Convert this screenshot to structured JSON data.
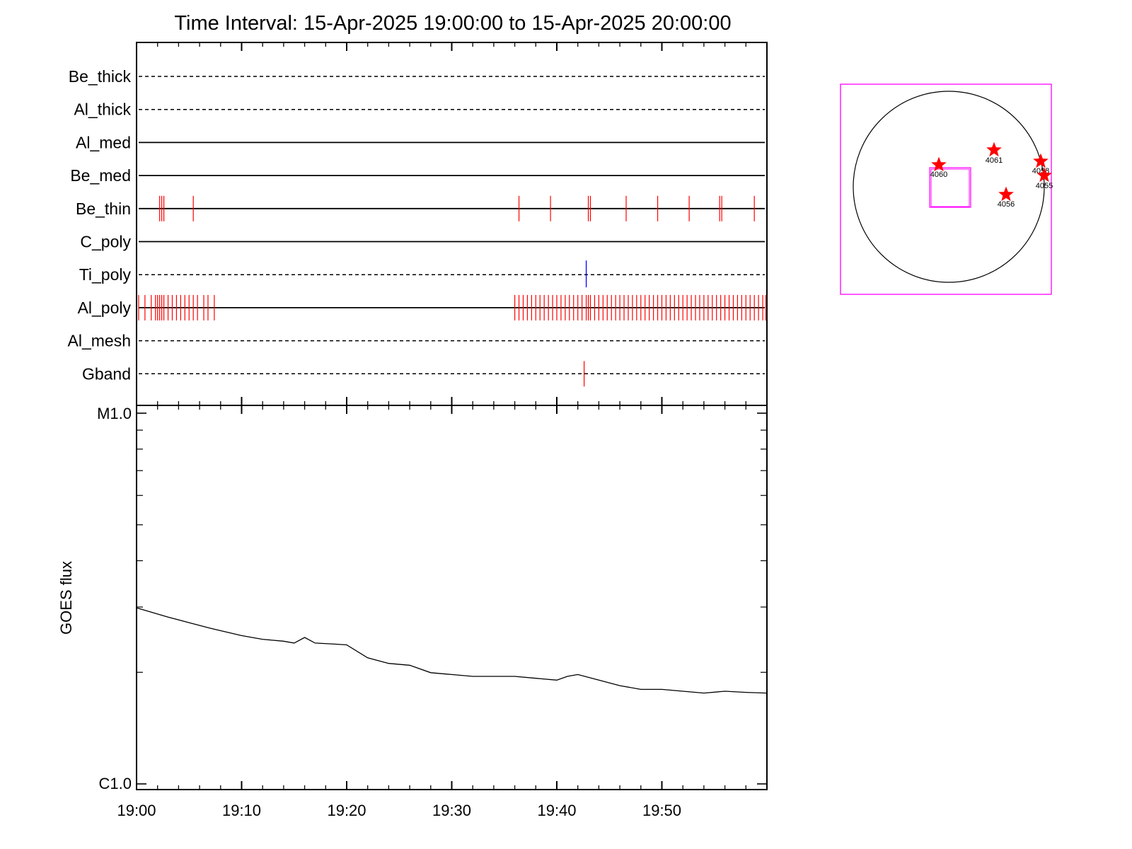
{
  "chart_data": [
    {
      "type": "event-timeline",
      "title": "Time Interval: 15-Apr-2025 19:00:00 to 15-Apr-2025 20:00:00",
      "x_range": [
        "19:00",
        "20:00"
      ],
      "channels": [
        {
          "name": "Be_thick",
          "line": "dashed",
          "events_red": [],
          "events_blue": []
        },
        {
          "name": "Al_thick",
          "line": "dashed",
          "events_red": [],
          "events_blue": []
        },
        {
          "name": "Al_med",
          "line": "solid",
          "events_red": [],
          "events_blue": []
        },
        {
          "name": "Be_med",
          "line": "solid",
          "events_red": [],
          "events_blue": []
        },
        {
          "name": "Be_thin",
          "line": "solid",
          "events_red": [
            "19:02:12",
            "19:02:24",
            "19:02:36",
            "19:05:24",
            "19:36:24",
            "19:39:24",
            "19:43:00",
            "19:43:12",
            "19:46:36",
            "19:49:36",
            "19:52:36",
            "19:55:30",
            "19:55:42",
            "19:58:48"
          ],
          "events_blue": []
        },
        {
          "name": "C_poly",
          "line": "solid",
          "events_red": [],
          "events_blue": []
        },
        {
          "name": "Ti_poly",
          "line": "dashed",
          "events_red": [],
          "events_blue": [
            "19:42:48"
          ]
        },
        {
          "name": "Al_poly",
          "line": "solid",
          "events_red": [
            "19:00:12",
            "19:00:48",
            "19:01:24",
            "19:01:48",
            "19:02:00",
            "19:02:12",
            "19:02:24",
            "19:02:36",
            "19:03:00",
            "19:03:24",
            "19:03:48",
            "19:04:12",
            "19:04:36",
            "19:05:00",
            "19:05:24",
            "19:05:48",
            "19:06:24",
            "19:06:48",
            "19:07:24",
            "19:36:00",
            "19:36:24",
            "19:36:48",
            "19:37:12",
            "19:37:36",
            "19:38:00",
            "19:38:24",
            "19:38:48",
            "19:39:12",
            "19:39:36",
            "19:40:00",
            "19:40:24",
            "19:40:48",
            "19:41:12",
            "19:41:36",
            "19:42:00",
            "19:42:24",
            "19:42:48",
            "19:43:00",
            "19:43:12",
            "19:43:36",
            "19:44:00",
            "19:44:24",
            "19:44:48",
            "19:45:12",
            "19:45:36",
            "19:46:00",
            "19:46:24",
            "19:46:48",
            "19:47:12",
            "19:47:36",
            "19:48:00",
            "19:48:24",
            "19:48:48",
            "19:49:12",
            "19:49:36",
            "19:50:00",
            "19:50:24",
            "19:50:48",
            "19:51:12",
            "19:51:36",
            "19:52:00",
            "19:52:24",
            "19:52:48",
            "19:53:12",
            "19:53:36",
            "19:54:00",
            "19:54:24",
            "19:54:48",
            "19:55:12",
            "19:55:36",
            "19:56:00",
            "19:56:24",
            "19:56:48",
            "19:57:12",
            "19:57:36",
            "19:58:00",
            "19:58:24",
            "19:58:48",
            "19:59:12",
            "19:59:36",
            "19:59:54"
          ],
          "events_blue": []
        },
        {
          "name": "Al_mesh",
          "line": "dashed",
          "events_red": [],
          "events_blue": []
        },
        {
          "name": "Gband",
          "line": "dashed",
          "events_red": [
            "19:42:36"
          ],
          "events_blue": []
        }
      ],
      "x_tick_labels": [
        "19:00",
        "19:10",
        "19:20",
        "19:30",
        "19:40",
        "19:50"
      ],
      "colors": {
        "event_red": "#ff0000",
        "event_blue": "#0000ff"
      }
    },
    {
      "type": "line",
      "ylabel": "GOES flux",
      "y_scale": "log",
      "y_tick_labels": [
        "M1.0",
        "C1.0"
      ],
      "ylim": [
        "C1.0",
        "M1.0"
      ],
      "x_tick_labels": [
        "19:00",
        "19:10",
        "19:20",
        "19:30",
        "19:40",
        "19:50"
      ],
      "x": [
        "19:00",
        "19:03",
        "19:05",
        "19:07",
        "19:10",
        "19:12",
        "19:14",
        "19:15",
        "19:16",
        "19:17",
        "19:19",
        "19:20",
        "19:22",
        "19:24",
        "19:26",
        "19:28",
        "19:30",
        "19:32",
        "19:34",
        "19:36",
        "19:38",
        "19:40",
        "19:41",
        "19:42",
        "19:44",
        "19:46",
        "19:48",
        "19:50",
        "19:52",
        "19:54",
        "19:56",
        "19:58",
        "20:00"
      ],
      "values_log10": [
        -5.525,
        -5.55,
        -5.565,
        -5.58,
        -5.6,
        -5.61,
        -5.615,
        -5.62,
        -5.605,
        -5.62,
        -5.623,
        -5.625,
        -5.66,
        -5.675,
        -5.68,
        -5.7,
        -5.705,
        -5.71,
        -5.71,
        -5.71,
        -5.715,
        -5.72,
        -5.71,
        -5.705,
        -5.72,
        -5.735,
        -5.745,
        -5.745,
        -5.75,
        -5.755,
        -5.75,
        -5.753,
        -5.755
      ],
      "color": "#000000"
    },
    {
      "type": "solar-disk",
      "regions": [
        {
          "label": "4060"
        },
        {
          "label": "4061"
        },
        {
          "label": "4058"
        },
        {
          "label": "4055"
        },
        {
          "label": "4056"
        }
      ],
      "colors": {
        "frame": "#ff00ff",
        "marker": "#ff0000",
        "fov": "#ff00ff"
      }
    }
  ]
}
